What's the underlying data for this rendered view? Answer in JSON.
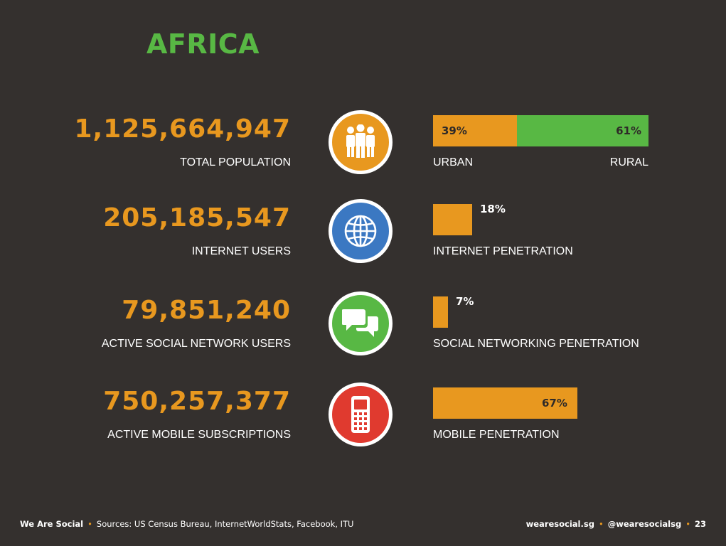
{
  "title": "AFRICA",
  "colors": {
    "background": "#34302e",
    "orange": "#e8981f",
    "green": "#58b844",
    "blue": "#3b78c2",
    "red": "#e03a2f",
    "white": "#ffffff"
  },
  "rows": [
    {
      "number": "1,125,664,947",
      "label": "TOTAL POPULATION",
      "icon": "people-icon",
      "icon_color": "#e8981f",
      "bar": {
        "urban_pct": 39,
        "rural_pct": 61,
        "urban_text": "39%",
        "rural_text": "61%",
        "left_label": "URBAN",
        "right_label": "RURAL"
      }
    },
    {
      "number": "205,185,547",
      "label": "INTERNET USERS",
      "icon": "globe-icon",
      "icon_color": "#3b78c2",
      "bar": {
        "pct": 18,
        "pct_text": "18%",
        "label": "INTERNET PENETRATION"
      }
    },
    {
      "number": "79,851,240",
      "label": "ACTIVE SOCIAL NETWORK USERS",
      "icon": "speech-bubbles-icon",
      "icon_color": "#58b844",
      "bar": {
        "pct": 7,
        "pct_text": "7%",
        "label": "SOCIAL NETWORKING PENETRATION"
      }
    },
    {
      "number": "750,257,377",
      "label": "ACTIVE MOBILE SUBSCRIPTIONS",
      "icon": "mobile-phone-icon",
      "icon_color": "#e03a2f",
      "bar": {
        "pct": 67,
        "pct_text": "67%",
        "label": "MOBILE PENETRATION"
      }
    }
  ],
  "footer": {
    "brand": "We Are Social",
    "sources": "Sources: US Census Bureau, InternetWorldStats, Facebook, ITU",
    "site": "wearesocial.sg",
    "handle": "@wearesocialsg",
    "page": "23"
  }
}
